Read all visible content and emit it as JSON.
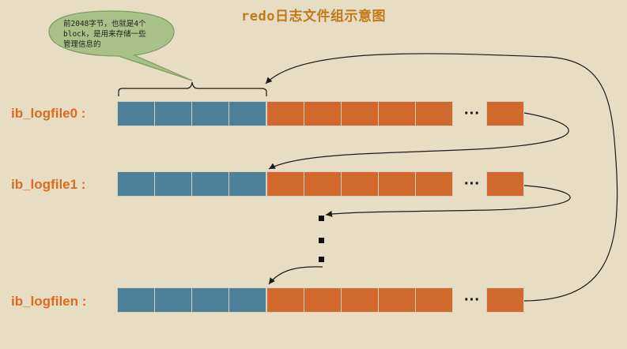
{
  "diagram": {
    "title": "redo日志文件组示意图",
    "callout": "前2048字节，也就是4个\nblock，是用来存储一些\n管理信息的",
    "ellipsis_horizontal": "···",
    "rows": [
      {
        "label": "ib_logfile0 :"
      },
      {
        "label": "ib_logfile1 :"
      },
      {
        "label": "ib_logfilen :"
      }
    ],
    "colors": {
      "background": "#e6ddc2",
      "header_block": "#4d8099",
      "data_block": "#d1682d",
      "label": "#dd6a1f",
      "title": "#c07a1a",
      "callout_fill": "#a8c188"
    }
  }
}
